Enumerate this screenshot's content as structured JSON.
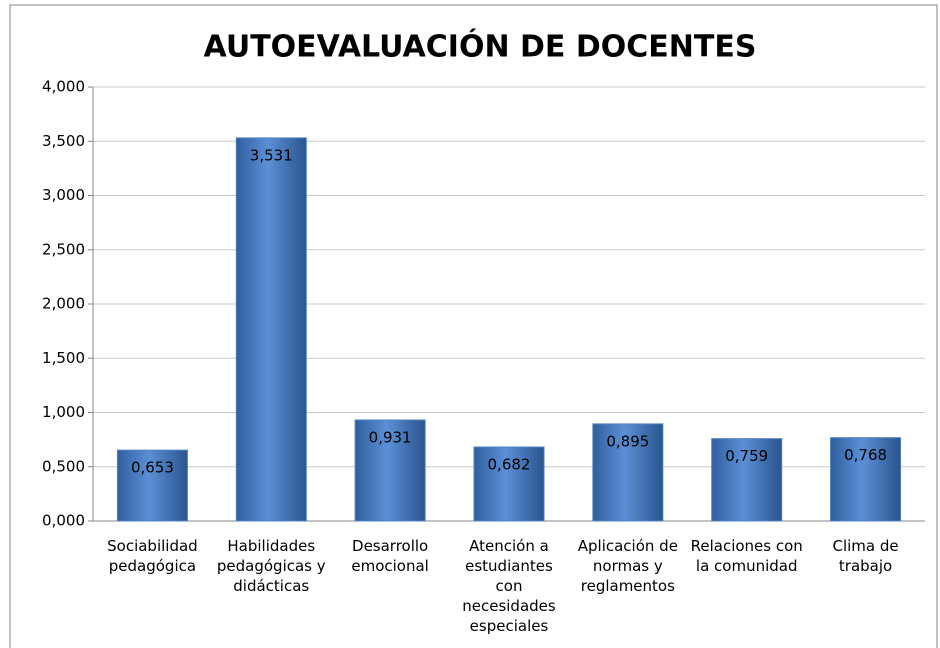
{
  "chart_data": {
    "type": "bar",
    "title": "AUTOEVALUACIÓN DE DOCENTES",
    "categories": [
      "Sociabilidad pedagógica",
      "Habilidades pedagógicas y didácticas",
      "Desarrollo emocional",
      "Atención a estudiantes con necesidades especiales",
      "Aplicación de normas y reglamentos",
      "Relaciones con la comunidad",
      "Clima de trabajo"
    ],
    "values": [
      0.653,
      3.531,
      0.931,
      0.682,
      0.895,
      0.759,
      0.768
    ],
    "value_labels": [
      "0,653",
      "3,531",
      "0,931",
      "0,682",
      "0,895",
      "0,759",
      "0,768"
    ],
    "color": "#4f81bd",
    "ylim": [
      0,
      4
    ],
    "yticks": [
      {
        "value": 0,
        "label": "0,000"
      },
      {
        "value": 0.5,
        "label": "0,500"
      },
      {
        "value": 1,
        "label": "1,000"
      },
      {
        "value": 1.5,
        "label": "1,500"
      },
      {
        "value": 2,
        "label": "2,000"
      },
      {
        "value": 2.5,
        "label": "2,500"
      },
      {
        "value": 3,
        "label": "3,000"
      },
      {
        "value": 3.5,
        "label": "3,500"
      },
      {
        "value": 4,
        "label": "4,000"
      }
    ],
    "grid": true
  }
}
